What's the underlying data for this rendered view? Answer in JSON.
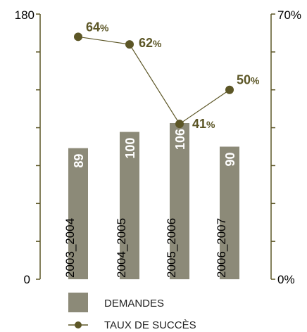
{
  "chart_data": {
    "type": "bar",
    "categories": [
      "2003_2004",
      "2004_2005",
      "2005_2006",
      "2006_2007"
    ],
    "series": [
      {
        "name": "DEMANDES",
        "type": "bar",
        "axis": "left",
        "values": [
          89,
          100,
          106,
          90
        ],
        "color": "#8c8a78"
      },
      {
        "name": "TAUX DE SUCCÈS",
        "type": "line",
        "axis": "right",
        "values": [
          64,
          62,
          41,
          50
        ],
        "unit": "%",
        "color": "#5c5626"
      }
    ],
    "left_axis": {
      "min": 0,
      "max": 180,
      "tick_labels": [
        "0",
        "180"
      ]
    },
    "right_axis": {
      "min": 0,
      "max": 70,
      "tick_labels": [
        "0%",
        "70%"
      ]
    },
    "grid": false,
    "legend_position": "bottom"
  },
  "legend": [
    {
      "label": "DEMANDES"
    },
    {
      "label": "TAUX DE SUCCÈS"
    }
  ]
}
